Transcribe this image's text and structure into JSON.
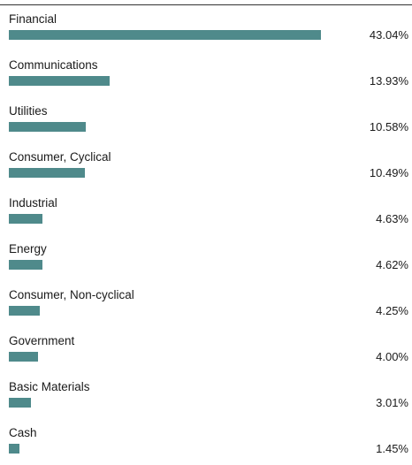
{
  "chart_data": {
    "type": "bar",
    "orientation": "horizontal",
    "title": "",
    "xlabel": "",
    "ylabel": "",
    "categories": [
      "Financial",
      "Communications",
      "Utilities",
      "Consumer, Cyclical",
      "Industrial",
      "Energy",
      "Consumer, Non-cyclical",
      "Government",
      "Basic Materials",
      "Cash"
    ],
    "values": [
      43.04,
      13.93,
      10.58,
      10.49,
      4.63,
      4.62,
      4.25,
      4.0,
      3.01,
      1.45
    ],
    "value_labels": [
      "43.04%",
      "13.93%",
      "10.58%",
      "10.49%",
      "4.63%",
      "4.62%",
      "4.25%",
      "4.00%",
      "3.01%",
      "1.45%"
    ],
    "xlim": [
      0,
      43.04
    ],
    "grid": false,
    "legend": "none",
    "colors": {
      "bar": "#4f8a8b"
    }
  }
}
